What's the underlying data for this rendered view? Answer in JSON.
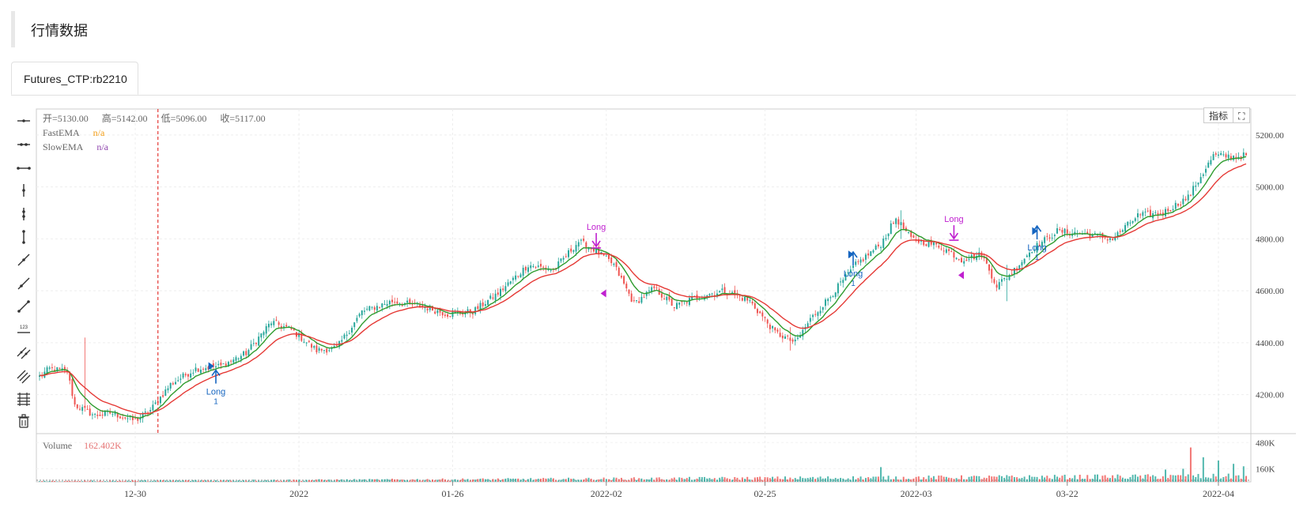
{
  "page": {
    "title": "行情数据"
  },
  "tabs": [
    {
      "label": "Futures_CTP:rb2210"
    }
  ],
  "legend": {
    "ohlc": {
      "open": "开=5130.00",
      "high": "高=5142.00",
      "low": "低=5096.00",
      "close": "收=5117.00"
    },
    "fast_ema": {
      "label": "FastEMA",
      "value": "n/a"
    },
    "slow_ema": {
      "label": "SlowEMA",
      "value": "n/a"
    },
    "volume": {
      "label": "Volume",
      "value": "162.402K"
    }
  },
  "buttons": {
    "indicator": "指标",
    "fullscreen_icon": "expand-icon"
  },
  "tools": [
    "horizontal-line-icon",
    "horizontal-ray-icon",
    "horizontal-segment-icon",
    "vertical-line-icon",
    "vertical-ray-icon",
    "vertical-segment-icon",
    "trend-line-icon",
    "ray-icon",
    "segment-icon",
    "price-label-icon",
    "parallel-channel-icon",
    "multi-line-icon",
    "fib-lines-icon",
    "trash-icon"
  ],
  "colors": {
    "up": "#26a69a",
    "down": "#ef5350",
    "fast_ema": "#2e9c2e",
    "slow_ema": "#e53935",
    "long_buy": "#1565c0",
    "long_exit": "#c020d0"
  },
  "chart_data": {
    "type": "candlestick",
    "price_axis": {
      "ticks": [
        "5200.00",
        "5000.00",
        "4800.00",
        "4600.00",
        "4400.00",
        "4200.00"
      ],
      "range": [
        4050,
        5300
      ]
    },
    "volume_axis": {
      "ticks": [
        "480K",
        "160K"
      ],
      "range": [
        0,
        560
      ]
    },
    "x_ticks": [
      "12-30",
      "2022",
      "01-26",
      "2022-02",
      "02-25",
      "2022-03",
      "03-22",
      "2022-04"
    ],
    "x_tick_index": [
      38,
      103,
      164,
      225,
      288,
      348,
      408,
      468
    ],
    "close_anchors": [
      [
        0,
        4270
      ],
      [
        4,
        4300
      ],
      [
        11,
        4290
      ],
      [
        14,
        4160
      ],
      [
        22,
        4120
      ],
      [
        28,
        4130
      ],
      [
        38,
        4100
      ],
      [
        44,
        4140
      ],
      [
        52,
        4240
      ],
      [
        62,
        4300
      ],
      [
        72,
        4310
      ],
      [
        82,
        4360
      ],
      [
        92,
        4480
      ],
      [
        100,
        4450
      ],
      [
        110,
        4370
      ],
      [
        118,
        4380
      ],
      [
        128,
        4520
      ],
      [
        140,
        4560
      ],
      [
        152,
        4540
      ],
      [
        162,
        4510
      ],
      [
        172,
        4520
      ],
      [
        182,
        4590
      ],
      [
        194,
        4700
      ],
      [
        204,
        4680
      ],
      [
        214,
        4790
      ],
      [
        220,
        4760
      ],
      [
        228,
        4700
      ],
      [
        236,
        4550
      ],
      [
        244,
        4610
      ],
      [
        252,
        4540
      ],
      [
        262,
        4580
      ],
      [
        272,
        4600
      ],
      [
        282,
        4560
      ],
      [
        292,
        4440
      ],
      [
        300,
        4400
      ],
      [
        306,
        4490
      ],
      [
        314,
        4580
      ],
      [
        324,
        4700
      ],
      [
        334,
        4780
      ],
      [
        340,
        4880
      ],
      [
        346,
        4800
      ],
      [
        358,
        4770
      ],
      [
        366,
        4720
      ],
      [
        374,
        4740
      ],
      [
        380,
        4620
      ],
      [
        386,
        4670
      ],
      [
        394,
        4760
      ],
      [
        404,
        4830
      ],
      [
        414,
        4820
      ],
      [
        426,
        4800
      ],
      [
        436,
        4890
      ],
      [
        446,
        4900
      ],
      [
        456,
        4960
      ],
      [
        466,
        5120
      ],
      [
        476,
        5117
      ]
    ],
    "spikes": [
      [
        18,
        4420,
        4160
      ],
      [
        384,
        4700,
        4560
      ],
      [
        298,
        4460,
        4370
      ],
      [
        342,
        4910,
        4800
      ]
    ],
    "bars": 480,
    "volume_spikes": [
      [
        334,
        180
      ],
      [
        457,
        420
      ],
      [
        462,
        300
      ],
      [
        468,
        260
      ],
      [
        474,
        220
      ],
      [
        478,
        190
      ],
      [
        447,
        150
      ],
      [
        454,
        160
      ]
    ],
    "signals": [
      {
        "label": "Long",
        "qty": "1",
        "index": 70,
        "price": 4255,
        "kind": "buy"
      },
      {
        "label": "Long",
        "qty": "1",
        "index": 323,
        "price": 4710,
        "kind": "buy"
      },
      {
        "label": "Long",
        "qty": "1",
        "index": 396,
        "price": 4810,
        "kind": "buy"
      },
      {
        "label": "Long",
        "index": 221,
        "price": 4780,
        "kind": "exit"
      },
      {
        "label": "Long",
        "index": 363,
        "price": 4810,
        "kind": "exit"
      }
    ],
    "markers": [
      {
        "index": 68,
        "price": 4310,
        "kind": "buy"
      },
      {
        "index": 322,
        "price": 4740,
        "kind": "buy"
      },
      {
        "index": 395,
        "price": 4830,
        "kind": "buy"
      },
      {
        "index": 224,
        "price": 4590,
        "kind": "exit"
      },
      {
        "index": 366,
        "price": 4660,
        "kind": "exit"
      }
    ],
    "crosshair_index": 47
  }
}
